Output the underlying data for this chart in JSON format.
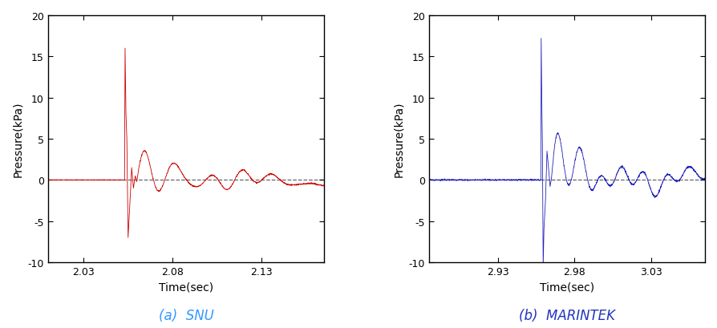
{
  "fig_width": 8.94,
  "fig_height": 4.1,
  "dpi": 100,
  "snu": {
    "xlim": [
      2.01,
      2.165
    ],
    "ylim": [
      -10,
      20
    ],
    "yticks": [
      -10,
      -5,
      0,
      5,
      10,
      15,
      20
    ],
    "xticks": [
      2.03,
      2.08,
      2.13
    ],
    "xlabel": "Time(sec)",
    "ylabel": "Pressure(kPa)",
    "label": "(a)  SNU",
    "label_color": "#3399ff",
    "signal_color": "#cc0000",
    "impact_time": 2.053,
    "peak_pressure": 16.0,
    "trough_pressure": -7.0
  },
  "marintek": {
    "xlim": [
      2.885,
      3.065
    ],
    "ylim": [
      -10,
      20
    ],
    "yticks": [
      -10,
      -5,
      0,
      5,
      10,
      15,
      20
    ],
    "xticks": [
      2.93,
      2.98,
      3.03
    ],
    "xlabel": "Time(sec)",
    "ylabel": "Pressure(kPa)",
    "label": "(b)  MARINTEK",
    "label_color": "#2233bb",
    "signal_color": "#2222bb",
    "impact_time": 2.958,
    "peak_pressure": 17.2,
    "trough_pressure": -10.5
  },
  "background_color": "#ffffff",
  "dashed_line_color": "#666666"
}
